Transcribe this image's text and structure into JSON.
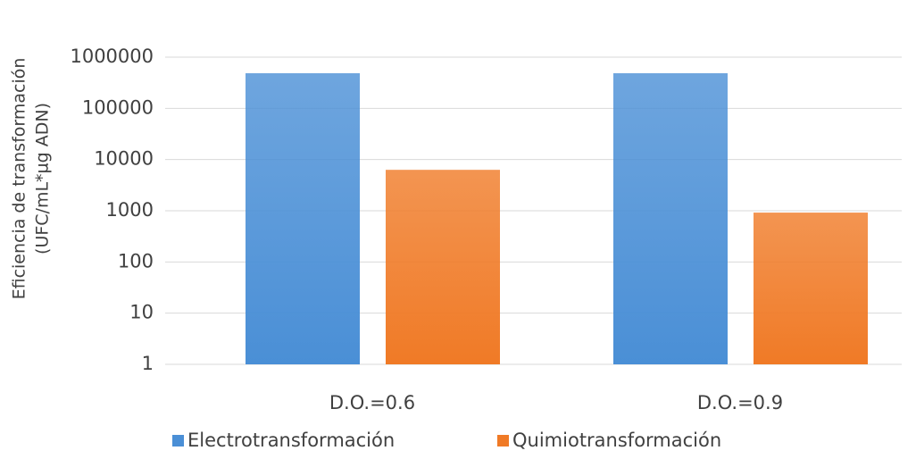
{
  "chart_data": {
    "type": "bar",
    "ylabel": [
      "Eficiencia de transformación",
      "(UFC/mL*µg ADN)"
    ],
    "categories": [
      "D.O.=0.6",
      "D.O.=0.9"
    ],
    "series": [
      {
        "name": "Electrotransformación",
        "color": "#4a8fd6",
        "values": [
          485000,
          485000
        ]
      },
      {
        "name": "Quimiotransformación",
        "color": "#f07a26",
        "values": [
          6300,
          920
        ]
      }
    ],
    "ylim": [
      1,
      1000000
    ],
    "yticks": [
      1,
      10,
      100,
      1000,
      10000,
      100000,
      1000000
    ],
    "log_scale": true,
    "grid": true,
    "legend": "bottom"
  }
}
